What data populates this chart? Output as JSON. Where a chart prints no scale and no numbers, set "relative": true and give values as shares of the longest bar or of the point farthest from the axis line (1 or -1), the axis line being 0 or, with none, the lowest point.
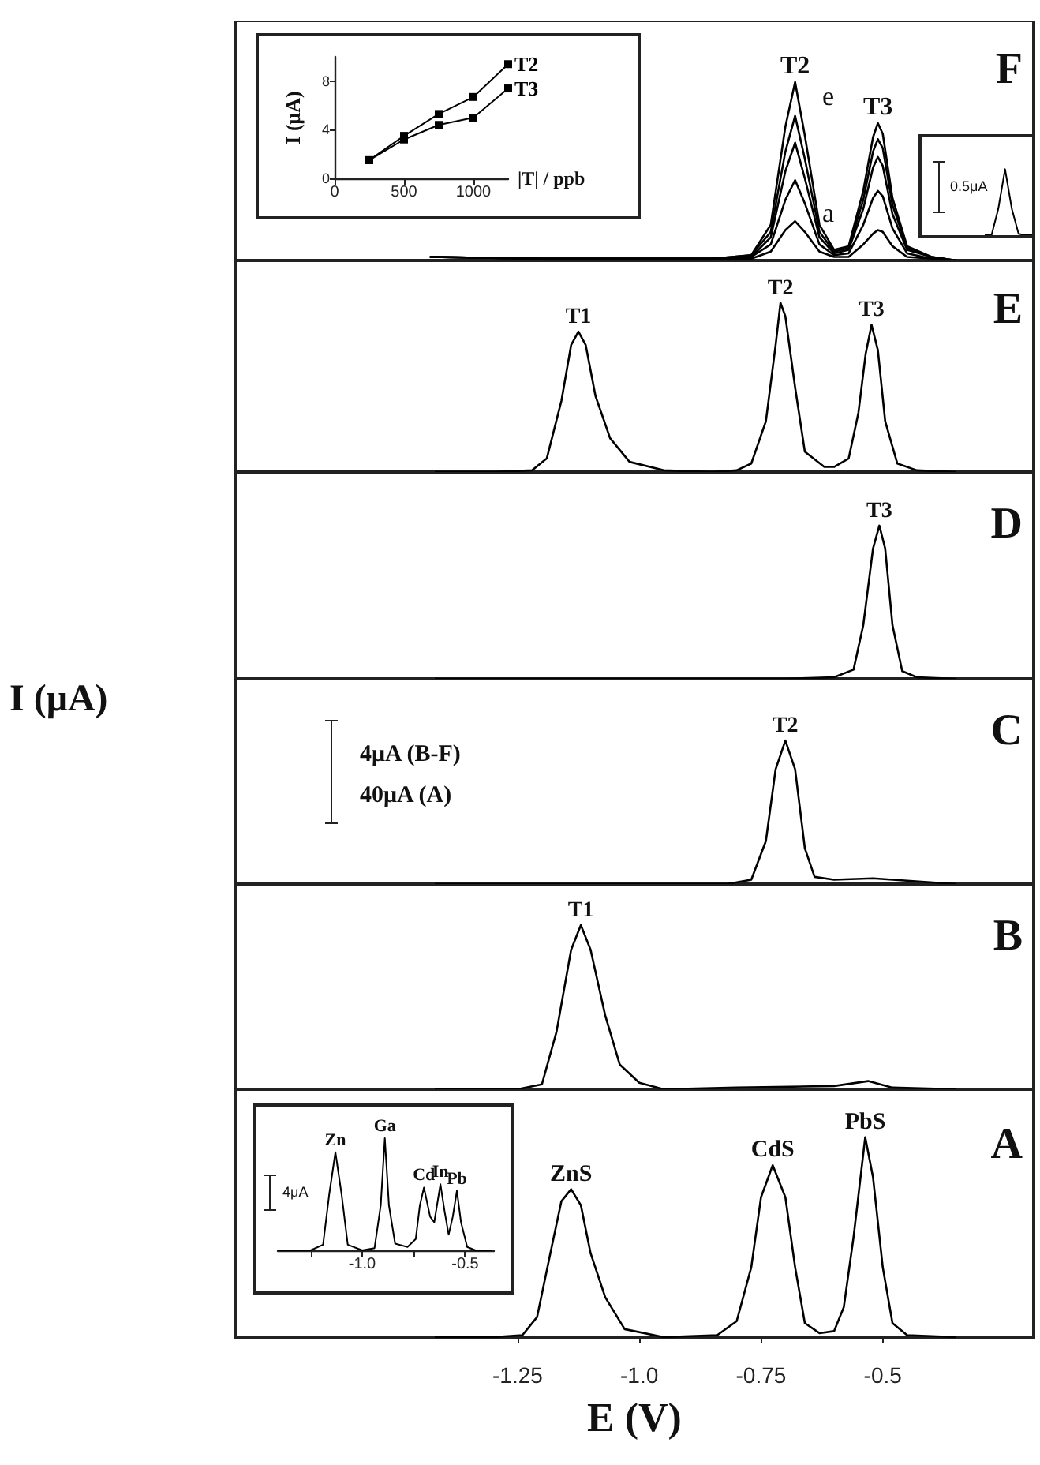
{
  "chart_data": [
    {
      "type": "line",
      "title": "F",
      "x": [
        -1.43,
        -1.2,
        -1.0,
        -0.85,
        -0.77,
        -0.73,
        -0.7,
        -0.68,
        -0.66,
        -0.63,
        -0.6,
        -0.57,
        -0.54,
        -0.52,
        -0.51,
        -0.5,
        -0.48,
        -0.45,
        -0.4,
        -0.35
      ],
      "xlim": [
        -1.83,
        -0.19
      ],
      "relative": true,
      "tick_labels": false,
      "series": [
        {
          "color": "#000000",
          "values": [
            0.02,
            0.01,
            0.01,
            0.01,
            0.01,
            0.05,
            0.17,
            0.22,
            0.16,
            0.05,
            0.02,
            0.02,
            0.09,
            0.15,
            0.17,
            0.16,
            0.08,
            0.02,
            0.01,
            0
          ]
        },
        {
          "color": "#000000",
          "values": [
            0.02,
            0.01,
            0.01,
            0.01,
            0.02,
            0.09,
            0.34,
            0.45,
            0.32,
            0.09,
            0.03,
            0.04,
            0.2,
            0.35,
            0.39,
            0.36,
            0.18,
            0.04,
            0.01,
            0
          ]
        },
        {
          "color": "#000000",
          "values": [
            0.02,
            0.01,
            0.01,
            0.01,
            0.02,
            0.13,
            0.5,
            0.66,
            0.46,
            0.13,
            0.04,
            0.06,
            0.29,
            0.52,
            0.58,
            0.53,
            0.26,
            0.06,
            0.02,
            0
          ]
        },
        {
          "color": "#000000",
          "values": [
            0.02,
            0.01,
            0.01,
            0.01,
            0.03,
            0.16,
            0.61,
            0.81,
            0.57,
            0.16,
            0.05,
            0.07,
            0.34,
            0.61,
            0.68,
            0.63,
            0.31,
            0.07,
            0.02,
            0
          ]
        },
        {
          "color": "#000000",
          "values": [
            0.02,
            0.01,
            0.01,
            0.01,
            0.03,
            0.2,
            0.75,
            1,
            0.7,
            0.2,
            0.06,
            0.08,
            0.39,
            0.69,
            0.77,
            0.71,
            0.35,
            0.08,
            0.02,
            0
          ]
        }
      ],
      "annotations": [
        {
          "text": "T2",
          "x": -0.68,
          "y": 1
        },
        {
          "text": "T3",
          "x": -0.51,
          "y": 0.77
        },
        "e",
        "a"
      ]
    },
    {
      "type": "line",
      "x": [
        250,
        500,
        750,
        1000,
        1250
      ],
      "xlim": [
        0,
        1250
      ],
      "ylim": [
        0,
        10
      ],
      "xticks": [
        0,
        500,
        1000
      ],
      "yticks": [
        0,
        4,
        8
      ],
      "xlabel": "|T| / ppb",
      "ylabel": "I (μA)",
      "marker": "square",
      "series": [
        {
          "name": "T2",
          "color": "#000000",
          "values": [
            1.5,
            3.5,
            5.3,
            6.7,
            9.4
          ]
        },
        {
          "name": "T3",
          "color": "#000000",
          "values": [
            1.5,
            3.2,
            4.4,
            5.0,
            7.4
          ]
        }
      ]
    },
    {
      "type": "line",
      "categories": [
        null,
        null,
        null,
        null,
        null,
        null,
        null,
        null
      ],
      "relative": true,
      "tick_labels": false,
      "series": [
        {
          "color": "#000000",
          "values": [
            0,
            0,
            0.4,
            1,
            0.4,
            0.02,
            0,
            0
          ]
        }
      ],
      "annotations": [
        "0.5μA"
      ]
    },
    {
      "type": "line",
      "title": "E",
      "xlim": [
        -1.83,
        -0.19
      ],
      "relative": true,
      "tick_labels": false,
      "series": [
        {
          "color": "#000000",
          "x": [
            -1.42,
            -1.3,
            -1.22,
            -1.19,
            -1.16,
            -1.14,
            -1.125,
            -1.11,
            -1.09,
            -1.06,
            -1.02,
            -0.95,
            -0.85,
            -0.8,
            -0.77,
            -0.74,
            -0.72,
            -0.71,
            -0.7,
            -0.68,
            -0.66,
            -0.62,
            -0.6,
            -0.57,
            -0.55,
            -0.535,
            -0.523,
            -0.51,
            -0.495,
            -0.47,
            -0.43,
            -0.35
          ],
          "values": [
            0,
            0,
            0.01,
            0.08,
            0.42,
            0.75,
            0.83,
            0.75,
            0.45,
            0.2,
            0.06,
            0.01,
            0,
            0.01,
            0.05,
            0.3,
            0.75,
            1,
            0.92,
            0.5,
            0.12,
            0.03,
            0.03,
            0.08,
            0.35,
            0.7,
            0.87,
            0.72,
            0.3,
            0.05,
            0.01,
            0
          ]
        }
      ],
      "annotations": [
        {
          "text": "T1",
          "x": -1.125,
          "y": 0.83
        },
        {
          "text": "T2",
          "x": -0.71,
          "y": 1
        },
        {
          "text": "T3",
          "x": -0.523,
          "y": 0.87
        }
      ]
    },
    {
      "type": "line",
      "title": "D",
      "xlim": [
        -1.83,
        -0.19
      ],
      "relative": true,
      "tick_labels": false,
      "series": [
        {
          "color": "#000000",
          "x": [
            -1.42,
            -1.0,
            -0.7,
            -0.6,
            -0.56,
            -0.54,
            -0.52,
            -0.507,
            -0.495,
            -0.48,
            -0.46,
            -0.43,
            -0.35
          ],
          "values": [
            0,
            0,
            0,
            0.01,
            0.06,
            0.35,
            0.85,
            1,
            0.85,
            0.35,
            0.05,
            0.01,
            0
          ]
        }
      ],
      "annotations": [
        {
          "text": "T3",
          "x": -0.507,
          "y": 1
        }
      ]
    },
    {
      "type": "line",
      "title": "C",
      "ylabel": "I (μA)",
      "xlim": [
        -1.83,
        -0.19
      ],
      "relative": true,
      "tick_labels": false,
      "series": [
        {
          "color": "#000000",
          "x": [
            -1.42,
            -1.0,
            -0.82,
            -0.77,
            -0.74,
            -0.72,
            -0.7,
            -0.68,
            -0.66,
            -0.64,
            -0.6,
            -0.52,
            -0.35
          ],
          "values": [
            0,
            0,
            0,
            0.03,
            0.3,
            0.8,
            1,
            0.8,
            0.25,
            0.05,
            0.03,
            0.04,
            0
          ]
        }
      ],
      "annotations": [
        {
          "text": "T2",
          "x": -0.7,
          "y": 1
        },
        "4μA (B-F)",
        "40μA (A)"
      ]
    },
    {
      "type": "line",
      "title": "B",
      "xlim": [
        -1.83,
        -0.19
      ],
      "relative": true,
      "tick_labels": false,
      "series": [
        {
          "color": "#000000",
          "x": [
            -1.42,
            -1.25,
            -1.2,
            -1.17,
            -1.14,
            -1.12,
            -1.1,
            -1.07,
            -1.04,
            -1.0,
            -0.95,
            -0.8,
            -0.6,
            -0.53,
            -0.48,
            -0.35
          ],
          "values": [
            0,
            0,
            0.03,
            0.35,
            0.85,
            1,
            0.85,
            0.45,
            0.15,
            0.04,
            0,
            0.01,
            0.02,
            0.05,
            0.01,
            0
          ]
        }
      ],
      "annotations": [
        {
          "text": "T1",
          "x": -1.12,
          "y": 1
        }
      ]
    },
    {
      "type": "line",
      "title": "A",
      "xlabel": "E (V)",
      "xlim": [
        -1.83,
        -0.19
      ],
      "xticks": [
        -1.25,
        {
          "value": -1,
          "label": "-1.0"
        },
        -0.75,
        -0.5
      ],
      "relative": true,
      "tick_labels": "x",
      "series": [
        {
          "color": "#000000",
          "x": [
            -1.42,
            -1.3,
            -1.24,
            -1.21,
            -1.18,
            -1.16,
            -1.14,
            -1.12,
            -1.1,
            -1.07,
            -1.03,
            -0.95,
            -0.84,
            -0.8,
            -0.77,
            -0.75,
            -0.726,
            -0.7,
            -0.68,
            -0.66,
            -0.63,
            -0.6,
            -0.58,
            -0.56,
            -0.536,
            -0.52,
            -0.5,
            -0.48,
            -0.45,
            -0.35
          ],
          "values": [
            0,
            0,
            0.01,
            0.1,
            0.45,
            0.68,
            0.74,
            0.66,
            0.42,
            0.2,
            0.04,
            0,
            0.01,
            0.08,
            0.35,
            0.7,
            0.86,
            0.7,
            0.35,
            0.07,
            0.02,
            0.03,
            0.15,
            0.5,
            1,
            0.8,
            0.35,
            0.07,
            0.01,
            0
          ]
        }
      ],
      "annotations": [
        {
          "text": "ZnS",
          "x": -1.14,
          "y": 0.74
        },
        {
          "text": "CdS",
          "x": -0.726,
          "y": 0.86
        },
        {
          "text": "PbS",
          "x": -0.536,
          "y": 1
        }
      ]
    },
    {
      "type": "line",
      "xlim": [
        -1.41,
        -0.36
      ],
      "xticks": [
        {
          "value": -1.25,
          "label": null
        },
        {
          "value": -1,
          "label": "-1.0"
        },
        {
          "value": -0.75,
          "label": null
        },
        -0.5
      ],
      "relative": true,
      "tick_labels": "x",
      "series": [
        {
          "color": "#000000",
          "x": [
            -1.41,
            -1.25,
            -1.19,
            -1.16,
            -1.13,
            -1.1,
            -1.07,
            -1.0,
            -0.94,
            -0.91,
            -0.89,
            -0.87,
            -0.84,
            -0.78,
            -0.74,
            -0.72,
            -0.7,
            -0.67,
            -0.65,
            -0.62,
            -0.6,
            -0.58,
            -0.56,
            -0.54,
            -0.52,
            -0.49,
            -0.45,
            -0.37
          ],
          "values": [
            0,
            0,
            0.05,
            0.5,
            0.875,
            0.5,
            0.05,
            0,
            0.02,
            0.4,
            1,
            0.4,
            0.06,
            0.03,
            0.1,
            0.4,
            0.56,
            0.3,
            0.25,
            0.59,
            0.35,
            0.14,
            0.3,
            0.53,
            0.25,
            0.03,
            0,
            0
          ]
        }
      ],
      "annotations": [
        {
          "text": "Zn",
          "x": -1.13,
          "y": 0.875
        },
        {
          "text": "Ga",
          "x": -0.89,
          "y": 1
        },
        {
          "text": "Cd",
          "x": -0.7,
          "y": 0.56
        },
        {
          "text": "In",
          "x": -0.62,
          "y": 0.59
        },
        {
          "text": "Pb",
          "x": -0.54,
          "y": 0.53
        },
        "4μA"
      ]
    }
  ]
}
